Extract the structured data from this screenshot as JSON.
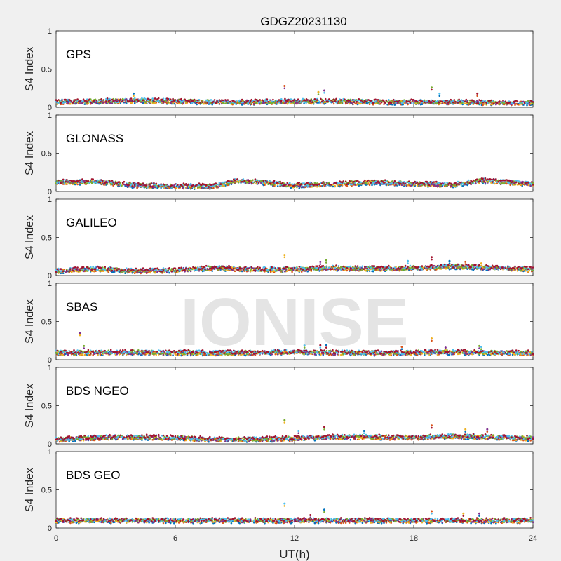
{
  "figure": {
    "title": "GDGZ20231130",
    "xlabel": "UT(h)",
    "watermark": "IONISE"
  },
  "chart_data": {
    "type": "scatter",
    "title": "GDGZ20231130",
    "xlabel": "UT(h)",
    "ylabel": "S4 Index",
    "xlim": [
      0,
      24
    ],
    "ylim": [
      0,
      1
    ],
    "xticks": [
      "0",
      "6",
      "12",
      "18",
      "24"
    ],
    "yticks": [
      "0",
      "0.5",
      "1"
    ],
    "grid": false,
    "palette": [
      "#0072BD",
      "#D95319",
      "#EDB120",
      "#7E2F8E",
      "#77AC30",
      "#4DBEEE",
      "#A2142F"
    ],
    "panels": [
      {
        "label": "GPS",
        "baseline": [
          [
            0,
            0.07
          ],
          [
            2,
            0.08
          ],
          [
            4,
            0.09
          ],
          [
            6,
            0.08
          ],
          [
            8,
            0.07
          ],
          [
            10,
            0.07
          ],
          [
            12,
            0.08
          ],
          [
            14,
            0.08
          ],
          [
            16,
            0.07
          ],
          [
            18,
            0.07
          ],
          [
            20,
            0.07
          ],
          [
            22,
            0.06
          ],
          [
            24,
            0.06
          ]
        ],
        "spikes": [
          [
            3.9,
            0.18
          ],
          [
            11.5,
            0.28
          ],
          [
            13.2,
            0.2
          ],
          [
            13.5,
            0.22
          ],
          [
            18.9,
            0.26
          ],
          [
            19.3,
            0.18
          ],
          [
            21.2,
            0.18
          ]
        ]
      },
      {
        "label": "GLONASS",
        "baseline": [
          [
            0,
            0.12
          ],
          [
            2,
            0.13
          ],
          [
            4,
            0.08
          ],
          [
            6,
            0.07
          ],
          [
            8,
            0.07
          ],
          [
            9,
            0.14
          ],
          [
            10,
            0.13
          ],
          [
            12,
            0.08
          ],
          [
            14,
            0.1
          ],
          [
            16,
            0.12
          ],
          [
            18,
            0.1
          ],
          [
            20,
            0.09
          ],
          [
            21.5,
            0.14
          ],
          [
            24,
            0.1
          ]
        ],
        "spikes": []
      },
      {
        "label": "GALILEO",
        "baseline": [
          [
            0,
            0.06
          ],
          [
            2,
            0.09
          ],
          [
            4,
            0.06
          ],
          [
            6,
            0.07
          ],
          [
            8,
            0.1
          ],
          [
            10,
            0.08
          ],
          [
            12,
            0.08
          ],
          [
            14,
            0.1
          ],
          [
            16,
            0.09
          ],
          [
            18,
            0.1
          ],
          [
            20,
            0.12
          ],
          [
            22,
            0.1
          ],
          [
            24,
            0.08
          ]
        ],
        "spikes": [
          [
            11.5,
            0.27
          ],
          [
            13.3,
            0.18
          ],
          [
            13.6,
            0.2
          ],
          [
            17.7,
            0.19
          ],
          [
            18.9,
            0.24
          ],
          [
            19.8,
            0.19
          ],
          [
            20.6,
            0.18
          ],
          [
            21.4,
            0.16
          ]
        ]
      },
      {
        "label": "SBAS",
        "baseline": [
          [
            0,
            0.09
          ],
          [
            4,
            0.1
          ],
          [
            8,
            0.09
          ],
          [
            12,
            0.1
          ],
          [
            16,
            0.09
          ],
          [
            20,
            0.1
          ],
          [
            24,
            0.09
          ]
        ],
        "spikes": [
          [
            1.2,
            0.35
          ],
          [
            1.4,
            0.18
          ],
          [
            12.5,
            0.19
          ],
          [
            13.3,
            0.19
          ],
          [
            13.6,
            0.19
          ],
          [
            17.4,
            0.17
          ],
          [
            18.9,
            0.28
          ],
          [
            19.6,
            0.16
          ],
          [
            21.3,
            0.18
          ],
          [
            21.4,
            0.17
          ]
        ]
      },
      {
        "label": "BDS NGEO",
        "baseline": [
          [
            0,
            0.06
          ],
          [
            2,
            0.08
          ],
          [
            4,
            0.09
          ],
          [
            6,
            0.08
          ],
          [
            8,
            0.06
          ],
          [
            10,
            0.06
          ],
          [
            12,
            0.07
          ],
          [
            14,
            0.09
          ],
          [
            16,
            0.09
          ],
          [
            18,
            0.08
          ],
          [
            20,
            0.1
          ],
          [
            22,
            0.09
          ],
          [
            24,
            0.07
          ]
        ],
        "spikes": [
          [
            11.5,
            0.31
          ],
          [
            12.2,
            0.17
          ],
          [
            13.5,
            0.22
          ],
          [
            15.5,
            0.17
          ],
          [
            18.9,
            0.24
          ],
          [
            20.6,
            0.19
          ],
          [
            21.7,
            0.19
          ]
        ]
      },
      {
        "label": "BDS GEO",
        "baseline": [
          [
            0,
            0.1
          ],
          [
            4,
            0.1
          ],
          [
            8,
            0.1
          ],
          [
            12,
            0.1
          ],
          [
            16,
            0.1
          ],
          [
            20,
            0.1
          ],
          [
            24,
            0.1
          ]
        ],
        "spikes": [
          [
            11.5,
            0.32
          ],
          [
            12.8,
            0.17
          ],
          [
            13.5,
            0.24
          ],
          [
            18.9,
            0.22
          ],
          [
            20.5,
            0.19
          ],
          [
            21.3,
            0.19
          ]
        ]
      }
    ]
  }
}
